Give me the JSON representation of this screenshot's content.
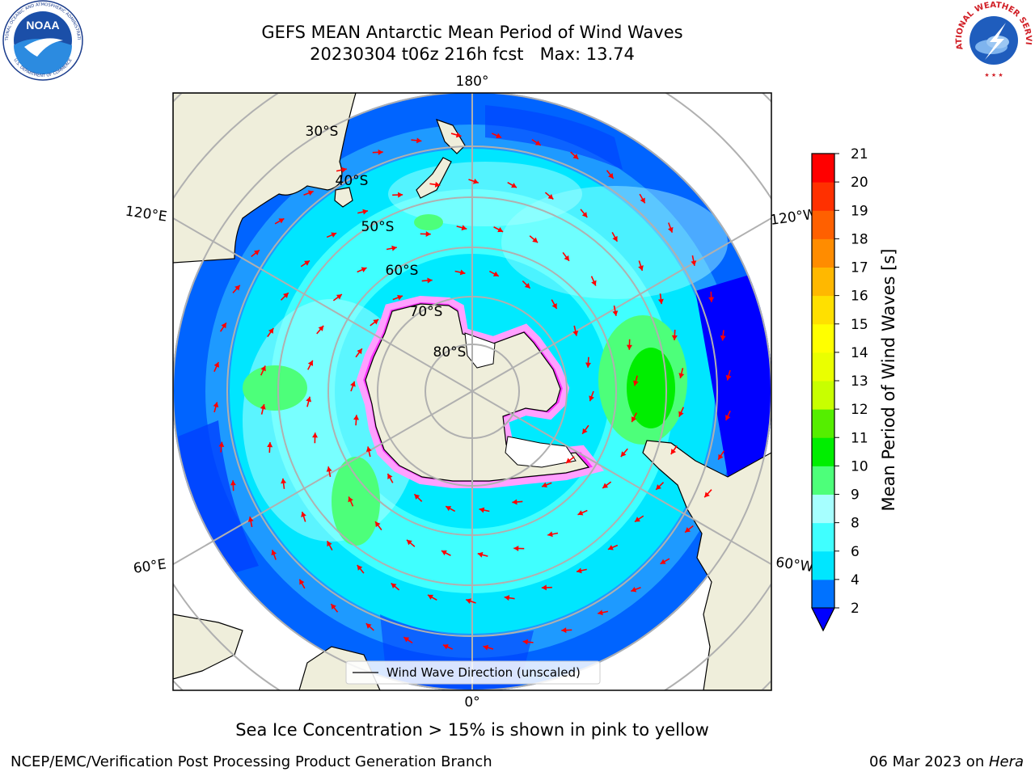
{
  "header": {
    "title_line1": "GEFS MEAN Antarctic Mean Period of Wind Waves",
    "title_line2": "20230304 t06z 216h fcst   Max: 13.74"
  },
  "logos": {
    "left": "noaa-logo",
    "right": "national-weather-service-logo",
    "noaa_text": "NOAA",
    "noaa_ring_text": "NATIONAL OCEANIC AND ATMOSPHERIC ADMINISTRATION",
    "noaa_bottom_text": "U.S. DEPARTMENT OF COMMERCE",
    "nws_ring_text": "NATIONAL WEATHER SERVICE"
  },
  "map": {
    "projection": "south-polar-stereographic",
    "longitude_labels": {
      "top": "180°",
      "upper_left": "120°E",
      "upper_right": "120°W",
      "lower_left": "60°E",
      "lower_right": "60°W",
      "bottom": "0°"
    },
    "latitude_labels": [
      "30°S",
      "40°S",
      "50°S",
      "60°S",
      "70°S",
      "80°S"
    ],
    "legend_label": "Wind Wave Direction (unscaled)",
    "arrow_color": "#ff0000",
    "land_color": "#efeedb",
    "sea_ice_colors": [
      "#ff33ff",
      "#ffa0ff",
      "#ffd000"
    ]
  },
  "colorbar": {
    "label": "Mean Period of Wind Waves [s]",
    "ticks": [
      "2",
      "4",
      "6",
      "8",
      "9",
      "10",
      "11",
      "12",
      "13",
      "14",
      "15",
      "16",
      "17",
      "18",
      "19",
      "20",
      "21"
    ],
    "colors": [
      "#0072ff",
      "#00e6ff",
      "#40ffff",
      "#a6ffff",
      "#4dff7a",
      "#00ee00",
      "#55ee00",
      "#c8ff00",
      "#eaff00",
      "#ffff00",
      "#ffe000",
      "#ffb800",
      "#ff8c00",
      "#ff6000",
      "#ff3000",
      "#ff0000"
    ],
    "extend_color": "#0000ff"
  },
  "caption": "Sea Ice Concentration > 15% is shown in pink to yellow",
  "footer": {
    "left": "NCEP/EMC/Verification Post Processing Product Generation Branch",
    "right_date": "06 Mar 2023 on ",
    "right_host": "Hera"
  }
}
